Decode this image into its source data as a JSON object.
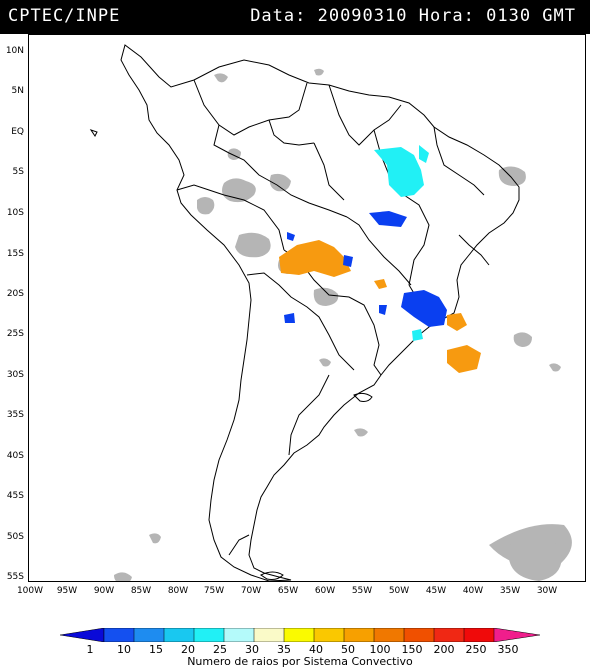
{
  "header": {
    "agency": "CPTEC/INPE",
    "datetime": "Data: 20090310 Hora: 0130 GMT"
  },
  "axes": {
    "latitudes": [
      "10N",
      "5N",
      "EQ",
      "5S",
      "10S",
      "15S",
      "20S",
      "25S",
      "30S",
      "35S",
      "40S",
      "45S",
      "50S",
      "55S"
    ],
    "longitudes": [
      "100W",
      "95W",
      "90W",
      "85W",
      "80W",
      "75W",
      "70W",
      "65W",
      "60W",
      "55W",
      "50W",
      "45W",
      "40W",
      "35W",
      "30W"
    ]
  },
  "colors": {
    "land_outline": "#000000",
    "cloud_gray": "#b5b5b5",
    "cyan": "#21f0f5",
    "blue": "#0a3ff0",
    "orange": "#f79a10"
  },
  "legend": {
    "ticks": [
      "1",
      "10",
      "15",
      "20",
      "25",
      "30",
      "35",
      "40",
      "50",
      "100",
      "150",
      "200",
      "250",
      "350"
    ],
    "colors": [
      "#0a0ad8",
      "#1450f0",
      "#1e8cf0",
      "#19c8f0",
      "#21f0f5",
      "#b4fafa",
      "#fafac8",
      "#fafa00",
      "#fac800",
      "#f7a000",
      "#f07800",
      "#f05000",
      "#f02814",
      "#f00a0a",
      "#f01e8c"
    ],
    "caption": "Numero de raios por Sistema Convectivo"
  }
}
